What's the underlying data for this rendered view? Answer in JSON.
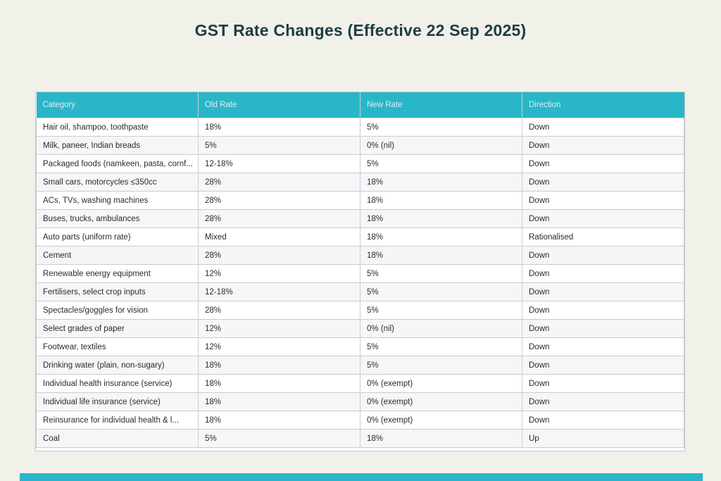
{
  "page_title": "GST Rate Changes (Effective 22 Sep 2025)",
  "colors": {
    "page_background": "#f1f0e9",
    "title_text": "#1e3d43",
    "table_header_background": "#29b6c8",
    "table_header_text": "#dceef1",
    "row_alternate_background": "#f5f6f8",
    "cell_border": "#c9cccf",
    "bottom_bar": "#29b6c8"
  },
  "chart_data": {
    "type": "table",
    "title": "GST Rate Changes (Effective 22 Sep 2025)",
    "columns": [
      "Category",
      "Old Rate",
      "New Rate",
      "Direction"
    ],
    "rows": [
      [
        "Hair oil, shampoo, toothpaste",
        "18%",
        "5%",
        "Down"
      ],
      [
        "Milk, paneer, Indian breads",
        "5%",
        "0% (nil)",
        "Down"
      ],
      [
        "Packaged foods (namkeen, pasta, cornf...",
        "12-18%",
        "5%",
        "Down"
      ],
      [
        "Small cars, motorcycles ≤350cc",
        "28%",
        "18%",
        "Down"
      ],
      [
        "ACs, TVs, washing machines",
        "28%",
        "18%",
        "Down"
      ],
      [
        "Buses, trucks, ambulances",
        "28%",
        "18%",
        "Down"
      ],
      [
        "Auto parts (uniform rate)",
        "Mixed",
        "18%",
        "Rationalised"
      ],
      [
        "Cement",
        "28%",
        "18%",
        "Down"
      ],
      [
        "Renewable energy equipment",
        "12%",
        "5%",
        "Down"
      ],
      [
        "Fertilisers, select crop inputs",
        "12-18%",
        "5%",
        "Down"
      ],
      [
        "Spectacles/goggles for vision",
        "28%",
        "5%",
        "Down"
      ],
      [
        "Select grades of paper",
        "12%",
        "0% (nil)",
        "Down"
      ],
      [
        "Footwear, textiles",
        "12%",
        "5%",
        "Down"
      ],
      [
        "Drinking water (plain, non-sugary)",
        "18%",
        "5%",
        "Down"
      ],
      [
        "Individual health insurance (service)",
        "18%",
        "0% (exempt)",
        "Down"
      ],
      [
        "Individual life insurance (service)",
        "18%",
        "0% (exempt)",
        "Down"
      ],
      [
        "Reinsurance for individual health & l...",
        "18%",
        "0% (exempt)",
        "Down"
      ],
      [
        "Coal",
        "5%",
        "18%",
        "Up"
      ]
    ]
  }
}
